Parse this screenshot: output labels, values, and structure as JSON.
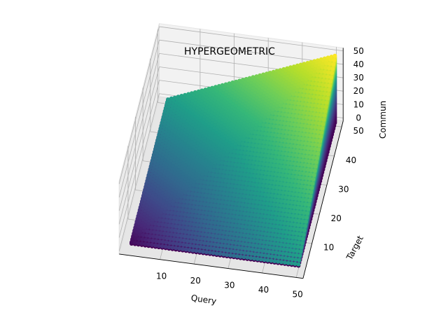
{
  "chart_data": {
    "type": "scatter3d",
    "title": "HYPERGEOMETRIC",
    "xlabel": "Query",
    "ylabel": "Target",
    "zlabel": "Commun",
    "x_ticks": [
      "10",
      "20",
      "30",
      "40",
      "50"
    ],
    "y_ticks": [
      "10",
      "20",
      "30",
      "40",
      "50"
    ],
    "z_ticks": [
      "0",
      "10",
      "20",
      "30",
      "40",
      "50"
    ],
    "xlim": [
      1,
      50
    ],
    "ylim": [
      1,
      50
    ],
    "zlim": [
      0,
      50
    ],
    "grid": true,
    "colormap": "viridis",
    "color_by": "probability",
    "surface": "commun = 0..min(query, target) for query, target in 1..50"
  }
}
